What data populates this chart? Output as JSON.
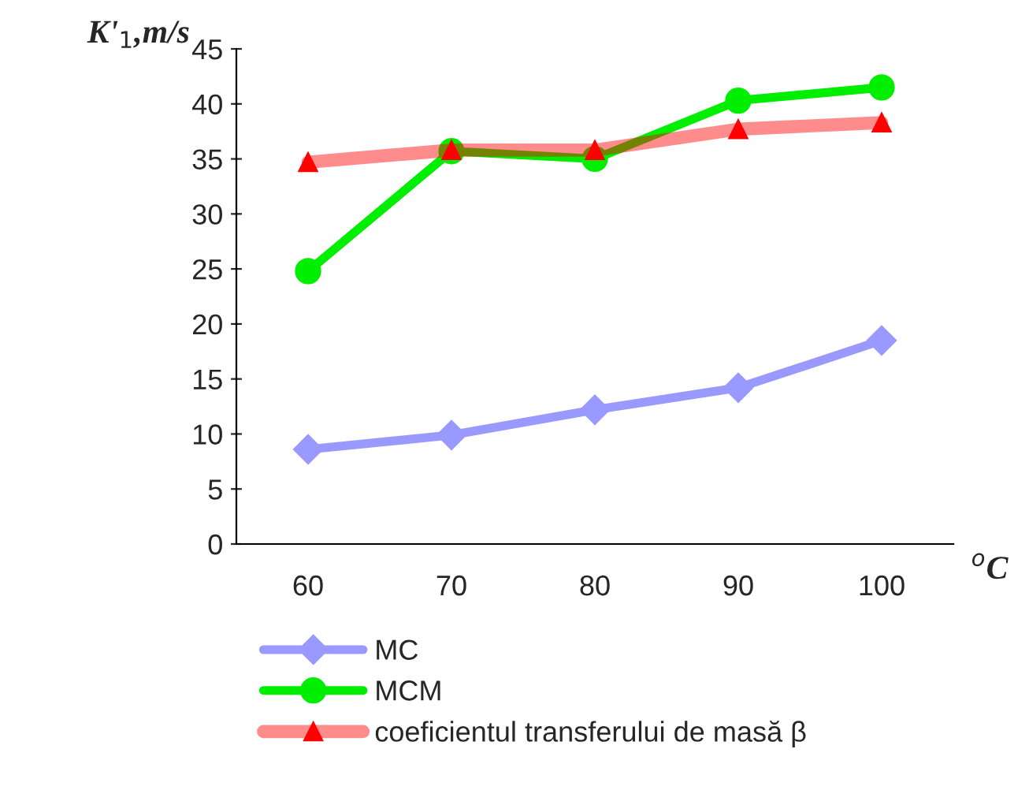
{
  "chart_data": {
    "type": "line",
    "xlabel": "$^{o}$C",
    "ylabel": "K'$_{1}$,m/s",
    "categories": [
      "60",
      "70",
      "80",
      "90",
      "100"
    ],
    "series": [
      {
        "name": "MC",
        "color": "#9999ff",
        "marker": "diamond",
        "values": [
          8.6,
          9.9,
          12.2,
          14.2,
          18.5
        ]
      },
      {
        "name": "MCM",
        "color": "#00ee00",
        "marker": "circle",
        "values": [
          24.8,
          35.7,
          35.0,
          40.3,
          41.5
        ]
      },
      {
        "name": "coeficientul transferului de masă β",
        "color": "#ff0000",
        "marker": "triangle",
        "values": [
          34.7,
          35.8,
          35.8,
          37.7,
          38.3
        ]
      }
    ],
    "ylim": [
      0,
      45
    ],
    "yticks": [
      0,
      5,
      10,
      15,
      20,
      25,
      30,
      35,
      40,
      45
    ],
    "grid": false,
    "legend": "bottom",
    "line_style": "solid"
  }
}
